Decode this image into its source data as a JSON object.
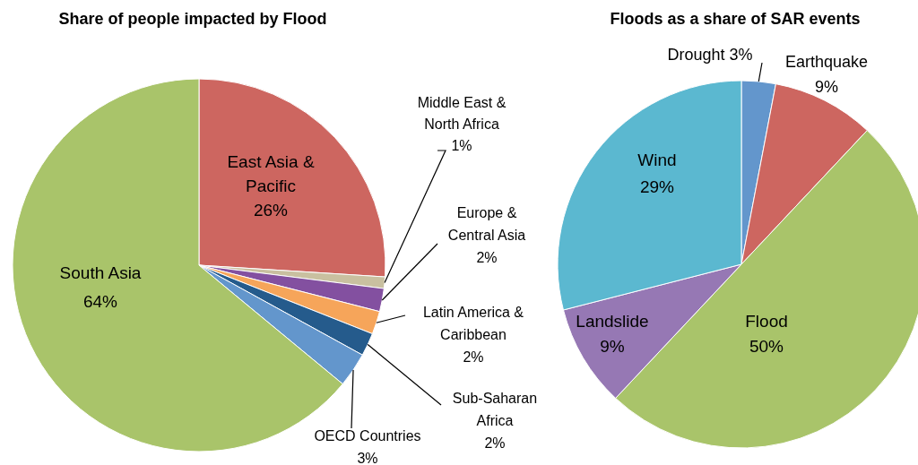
{
  "chart_data": [
    {
      "type": "pie",
      "title": "Share of people impacted by Flood",
      "categories": [
        "East Asia & Pacific",
        "Middle East & North Africa",
        "Europe & Central Asia",
        "Latin America & Caribbean",
        "Sub-Saharan Africa",
        "OECD Countries",
        "South Asia"
      ],
      "values": [
        26,
        1,
        2,
        2,
        2,
        3,
        64
      ],
      "colors": [
        "#cd6660",
        "#c9c0a0",
        "#8350a0",
        "#f6a55a",
        "#255b8c",
        "#6396cc",
        "#a9c46a"
      ],
      "value_labels": [
        "26%",
        "1%",
        "2%",
        "2%",
        "2%",
        "3%",
        "64%"
      ]
    },
    {
      "type": "pie",
      "title": "Floods as a share of SAR events",
      "categories": [
        "Drought",
        "Earthquake",
        "Flood",
        "Landslide",
        "Wind"
      ],
      "values": [
        3,
        9,
        50,
        9,
        29
      ],
      "colors": [
        "#6396cc",
        "#cd6660",
        "#a9c46a",
        "#9678b4",
        "#5bb8d0"
      ],
      "value_labels": [
        "3%",
        "9%",
        "50%",
        "9%",
        "29%"
      ]
    }
  ]
}
